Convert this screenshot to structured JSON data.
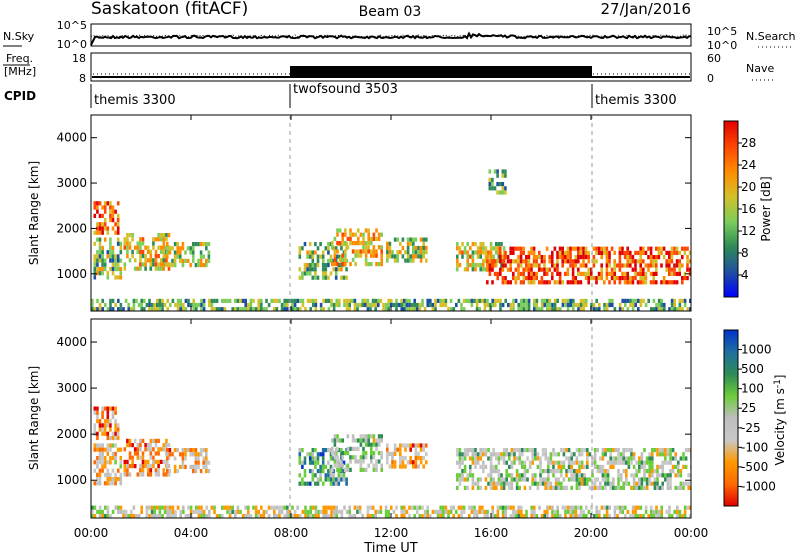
{
  "header": {
    "station": "Saskatoon (fitACF)",
    "beam": "Beam 03",
    "date": "27/Jan/2016"
  },
  "noise_panel": {
    "left_label": "N.Sky",
    "left_ticks": [
      "10^5",
      "10^0"
    ],
    "right_label": "N.Search",
    "right_ticks": [
      "10^5",
      "10^0"
    ]
  },
  "freq_panel": {
    "left_label_top": "Freq.",
    "left_label_bottom": "[MHz]",
    "left_ticks": [
      "18",
      "8"
    ],
    "right_label": "Nave",
    "right_ticks": [
      "60",
      "0"
    ]
  },
  "cpid": {
    "label": "CPID",
    "segments": [
      {
        "name": "themis 3300",
        "start_hour": 0,
        "end_hour": 8
      },
      {
        "name": "twofsound 3503",
        "start_hour": 8,
        "end_hour": 20
      },
      {
        "name": "themis 3300",
        "start_hour": 20,
        "end_hour": 24
      }
    ]
  },
  "colors": {
    "power_scale": [
      "#0000ff",
      "#1f4fa0",
      "#2e8b57",
      "#7ccd5a",
      "#d4c02a",
      "#ff8c00",
      "#ff4500",
      "#e00000"
    ],
    "velocity_scale": [
      "#0033cc",
      "#1f6fa0",
      "#2e8b57",
      "#6ccd3a",
      "#bebebe",
      "#c8c8c8",
      "#ff9900",
      "#ff6a00",
      "#e00000"
    ],
    "ground_scatter": "#bebebe"
  },
  "x_axis": {
    "label": "Time UT",
    "ticks": [
      "00:00",
      "04:00",
      "08:00",
      "12:00",
      "16:00",
      "20:00",
      "00:00"
    ]
  },
  "chart_data": [
    {
      "type": "heatmap",
      "title": "",
      "xlabel": "Time UT",
      "ylabel": "Slant Range [km]",
      "xlim": [
        0,
        24
      ],
      "ylim": [
        180,
        4500
      ],
      "y_ticks": [
        "1000",
        "2000",
        "3000",
        "4000"
      ],
      "colorbar": {
        "label": "Power [dB]",
        "range": [
          0,
          30
        ],
        "ticks": [
          "4",
          "8",
          "12",
          "16",
          "20",
          "24",
          "28"
        ]
      },
      "scatter_regions": [
        {
          "t0": 0.1,
          "t1": 1.1,
          "r0": 1950,
          "r1": 2600,
          "level": 0.75
        },
        {
          "t0": 0.1,
          "t1": 1.2,
          "r0": 900,
          "r1": 1800,
          "level": 0.45
        },
        {
          "t0": 1.3,
          "t1": 3.1,
          "r0": 1100,
          "r1": 1900,
          "level": 0.55
        },
        {
          "t0": 3.0,
          "t1": 4.7,
          "r0": 1200,
          "r1": 1700,
          "level": 0.5
        },
        {
          "t0": 8.3,
          "t1": 10.2,
          "r0": 950,
          "r1": 1700,
          "level": 0.45
        },
        {
          "t0": 9.6,
          "t1": 11.6,
          "r0": 1250,
          "r1": 2000,
          "level": 0.6
        },
        {
          "t0": 11.8,
          "t1": 13.4,
          "r0": 1300,
          "r1": 1800,
          "level": 0.5
        },
        {
          "t0": 14.6,
          "t1": 16.5,
          "r0": 1100,
          "r1": 1700,
          "level": 0.55
        },
        {
          "t0": 15.8,
          "t1": 24.0,
          "r0": 800,
          "r1": 1600,
          "level": 0.8
        },
        {
          "t0": 15.9,
          "t1": 16.6,
          "r0": 2800,
          "r1": 3300,
          "level": 0.35
        },
        {
          "t0": 0.0,
          "t1": 24.0,
          "r0": 200,
          "r1": 450,
          "level": 0.4
        }
      ]
    },
    {
      "type": "heatmap",
      "title": "",
      "xlabel": "Time UT",
      "ylabel": "Slant Range [km]",
      "xlim": [
        0,
        24
      ],
      "ylim": [
        180,
        4500
      ],
      "y_ticks": [
        "1000",
        "2000",
        "3000",
        "4000"
      ],
      "colorbar": {
        "label": "Velocity [m s^-1]",
        "range": [
          -1200,
          1200
        ],
        "ticks": [
          "1000",
          "500",
          "100",
          "25",
          "-25",
          "-100",
          "-500",
          "-1000"
        ]
      },
      "scatter_regions": [
        {
          "t0": 0.1,
          "t1": 1.1,
          "r0": 1950,
          "r1": 2600,
          "level": 0.25
        },
        {
          "t0": 0.1,
          "t1": 1.2,
          "r0": 900,
          "r1": 1800,
          "level": 0.35
        },
        {
          "t0": 1.3,
          "t1": 3.1,
          "r0": 1100,
          "r1": 1900,
          "level": 0.3
        },
        {
          "t0": 3.0,
          "t1": 4.7,
          "r0": 1200,
          "r1": 1700,
          "level": 0.3
        },
        {
          "t0": 8.3,
          "t1": 10.2,
          "r0": 950,
          "r1": 1700,
          "level": 0.7
        },
        {
          "t0": 9.6,
          "t1": 11.6,
          "r0": 1250,
          "r1": 2000,
          "level": 0.55
        },
        {
          "t0": 11.8,
          "t1": 13.4,
          "r0": 1300,
          "r1": 1800,
          "level": 0.3
        },
        {
          "t0": 14.6,
          "t1": 24.0,
          "r0": 800,
          "r1": 1700,
          "level": 0.5
        },
        {
          "t0": 0.0,
          "t1": 24.0,
          "r0": 200,
          "r1": 450,
          "level": 0.45
        }
      ]
    }
  ]
}
